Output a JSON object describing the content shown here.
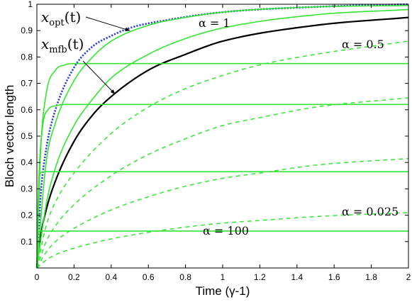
{
  "chart_data": {
    "type": "line",
    "xlabel": "Time (γ-1)",
    "ylabel": "Bloch vector length",
    "xlim": [
      0,
      2
    ],
    "ylim": [
      0,
      1
    ],
    "x_ticks": [
      "0",
      "0.2",
      "0.4",
      "0.6",
      "0.8",
      "1",
      "1.2",
      "1.4",
      "1.6",
      "1.8",
      "2"
    ],
    "y_ticks": [
      "0.1",
      "0.2",
      "0.3",
      "0.4",
      "0.5",
      "0.6",
      "0.7",
      "0.8",
      "0.9",
      "1"
    ],
    "grid": false,
    "legend": "none",
    "annotations": [
      {
        "text": "x",
        "sub": "opt",
        "suffix": "(t)",
        "target_x": 0.5,
        "target_y": 0.9
      },
      {
        "text": "x",
        "sub": "mfb",
        "suffix": "(t)",
        "target_x": 0.42,
        "target_y": 0.66
      },
      {
        "text": "α = 1"
      },
      {
        "text": "α = 0.5"
      },
      {
        "text": "α = 0.025"
      },
      {
        "text": "α = 100"
      }
    ],
    "series": [
      {
        "color": "#2b3fd6",
        "style": "dotted",
        "shape": "sat",
        "x": [
          0,
          0.02,
          0.05,
          0.1,
          0.2,
          0.3,
          0.4,
          0.5,
          0.7,
          1.0,
          1.5,
          2.0
        ],
        "y": [
          0,
          0.27,
          0.45,
          0.6,
          0.76,
          0.84,
          0.88,
          0.91,
          0.94,
          0.97,
          0.99,
          1.0
        ]
      },
      {
        "color": "#000000",
        "style": "solid",
        "shape": "sat",
        "x": [
          0,
          0.02,
          0.05,
          0.1,
          0.2,
          0.3,
          0.4,
          0.6,
          0.8,
          1.0,
          1.5,
          2.0
        ],
        "y": [
          0,
          0.12,
          0.22,
          0.33,
          0.48,
          0.58,
          0.65,
          0.75,
          0.81,
          0.86,
          0.92,
          0.95
        ]
      },
      {
        "color": "#33e633",
        "style": "solid",
        "shape": "sat",
        "x": [
          0,
          0.05,
          0.1,
          0.2,
          0.3,
          0.4,
          0.6,
          0.8,
          1.0,
          1.5,
          2.0
        ],
        "y": [
          0,
          0.4,
          0.55,
          0.71,
          0.8,
          0.86,
          0.92,
          0.95,
          0.97,
          0.99,
          0.995
        ]
      },
      {
        "color": "#33e633",
        "style": "solid",
        "shape": "sat",
        "x": [
          0,
          0.05,
          0.1,
          0.2,
          0.3,
          0.4,
          0.6,
          0.8,
          1.0,
          1.5,
          2.0
        ],
        "y": [
          0,
          0.24,
          0.38,
          0.54,
          0.64,
          0.72,
          0.81,
          0.87,
          0.91,
          0.96,
          0.98
        ]
      },
      {
        "color": "#33e633",
        "style": "dashed",
        "shape": "sat",
        "x": [
          0,
          0.05,
          0.1,
          0.2,
          0.4,
          0.6,
          0.8,
          1.0,
          1.2,
          1.5,
          2.0
        ],
        "y": [
          0,
          0.16,
          0.25,
          0.36,
          0.51,
          0.61,
          0.68,
          0.73,
          0.77,
          0.81,
          0.86
        ]
      },
      {
        "color": "#33e633",
        "style": "dashed",
        "shape": "sat",
        "x": [
          0,
          0.05,
          0.1,
          0.2,
          0.4,
          0.6,
          0.8,
          1.0,
          1.2,
          1.5,
          2.0
        ],
        "y": [
          0,
          0.1,
          0.16,
          0.24,
          0.35,
          0.43,
          0.49,
          0.54,
          0.57,
          0.61,
          0.645
        ]
      },
      {
        "color": "#33e633",
        "style": "dashed",
        "shape": "sat",
        "x": [
          0,
          0.05,
          0.1,
          0.2,
          0.4,
          0.6,
          0.8,
          1.0,
          1.2,
          1.5,
          2.0
        ],
        "y": [
          0,
          0.06,
          0.1,
          0.15,
          0.22,
          0.27,
          0.31,
          0.34,
          0.36,
          0.39,
          0.415
        ]
      },
      {
        "color": "#33e633",
        "style": "dashed",
        "shape": "sat",
        "x": [
          0,
          0.05,
          0.1,
          0.2,
          0.4,
          0.6,
          0.8,
          1.0,
          1.2,
          1.5,
          2.0
        ],
        "y": [
          0,
          0.03,
          0.05,
          0.075,
          0.11,
          0.135,
          0.155,
          0.17,
          0.18,
          0.195,
          0.21
        ]
      },
      {
        "color": "#33e633",
        "style": "solid",
        "shape": "fast",
        "x": [
          0,
          0.02,
          0.05,
          0.1,
          0.15,
          0.2,
          0.3,
          2.0
        ],
        "y": [
          0,
          0.44,
          0.66,
          0.75,
          0.77,
          0.775,
          0.775,
          0.775
        ]
      },
      {
        "color": "#33e633",
        "style": "solid",
        "shape": "fast",
        "x": [
          0,
          0.01,
          0.03,
          0.06,
          0.1,
          0.15,
          2.0
        ],
        "y": [
          0,
          0.32,
          0.53,
          0.6,
          0.615,
          0.62,
          0.62
        ]
      },
      {
        "color": "#33e633",
        "style": "solid",
        "shape": "fast",
        "x": [
          0,
          0.005,
          0.01,
          0.02,
          0.04,
          2.0
        ],
        "y": [
          0,
          0.2,
          0.31,
          0.36,
          0.365,
          0.365
        ]
      },
      {
        "color": "#33e633",
        "style": "solid",
        "shape": "fast",
        "x": [
          0,
          0.003,
          0.008,
          0.015,
          2.0
        ],
        "y": [
          0,
          0.09,
          0.135,
          0.14,
          0.14
        ]
      }
    ]
  }
}
